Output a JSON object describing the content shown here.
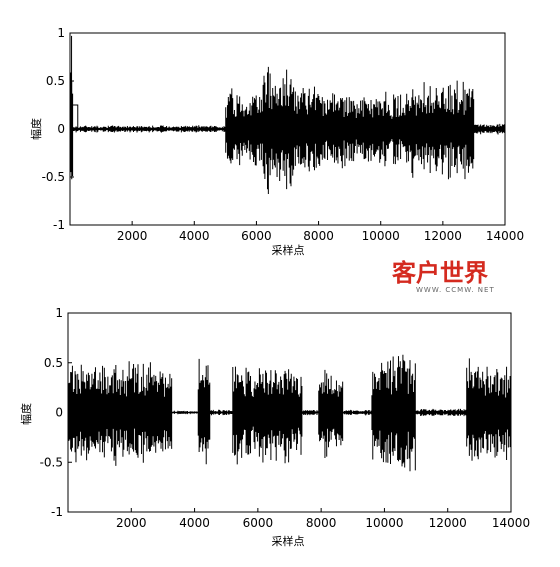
{
  "chart_data": [
    {
      "type": "line",
      "title": "",
      "xlabel": "采样点",
      "ylabel": "幅度",
      "xlim": [
        0,
        14000
      ],
      "ylim": [
        -1,
        1
      ],
      "x_ticks": [
        2000,
        4000,
        6000,
        8000,
        10000,
        12000,
        14000
      ],
      "y_ticks": [
        1,
        0.5,
        0,
        -0.5,
        -1
      ],
      "grid": false,
      "description_segments": [
        {
          "x": [
            0,
            100
          ],
          "amplitude": 1.0
        },
        {
          "x": [
            100,
            5000
          ],
          "amplitude": 0.04
        },
        {
          "x": [
            5000,
            6200
          ],
          "amplitude": 0.45
        },
        {
          "x": [
            6200,
            7200
          ],
          "amplitude": 0.7
        },
        {
          "x": [
            7200,
            9000
          ],
          "amplitude": 0.45
        },
        {
          "x": [
            9000,
            11000
          ],
          "amplitude": 0.4
        },
        {
          "x": [
            11000,
            13000
          ],
          "amplitude": 0.55
        },
        {
          "x": [
            13000,
            14000
          ],
          "amplitude": 0.06
        }
      ]
    },
    {
      "type": "line",
      "title": "",
      "xlabel": "采样点",
      "ylabel": "幅度",
      "xlim": [
        0,
        14000
      ],
      "ylim": [
        -1,
        1
      ],
      "x_ticks": [
        2000,
        4000,
        6000,
        8000,
        10000,
        12000,
        14000
      ],
      "y_ticks": [
        1,
        0.5,
        0,
        -0.5,
        -1
      ],
      "grid": false,
      "description_segments": [
        {
          "x": [
            0,
            3300
          ],
          "amplitude": 0.55
        },
        {
          "x": [
            3300,
            4100
          ],
          "amplitude": 0.02
        },
        {
          "x": [
            4100,
            4500
          ],
          "amplitude": 0.6
        },
        {
          "x": [
            4500,
            5200
          ],
          "amplitude": 0.03
        },
        {
          "x": [
            5200,
            7400
          ],
          "amplitude": 0.55
        },
        {
          "x": [
            7400,
            7900
          ],
          "amplitude": 0.03
        },
        {
          "x": [
            7900,
            8700
          ],
          "amplitude": 0.5
        },
        {
          "x": [
            8700,
            9600
          ],
          "amplitude": 0.03
        },
        {
          "x": [
            9600,
            11000
          ],
          "amplitude": 0.6
        },
        {
          "x": [
            11000,
            12600
          ],
          "amplitude": 0.04
        },
        {
          "x": [
            12600,
            14000
          ],
          "amplitude": 0.6
        }
      ]
    }
  ],
  "watermark": {
    "main": "客户世界",
    "sub": "WWW. CCMW. NET",
    "color": "#d42a1f"
  }
}
